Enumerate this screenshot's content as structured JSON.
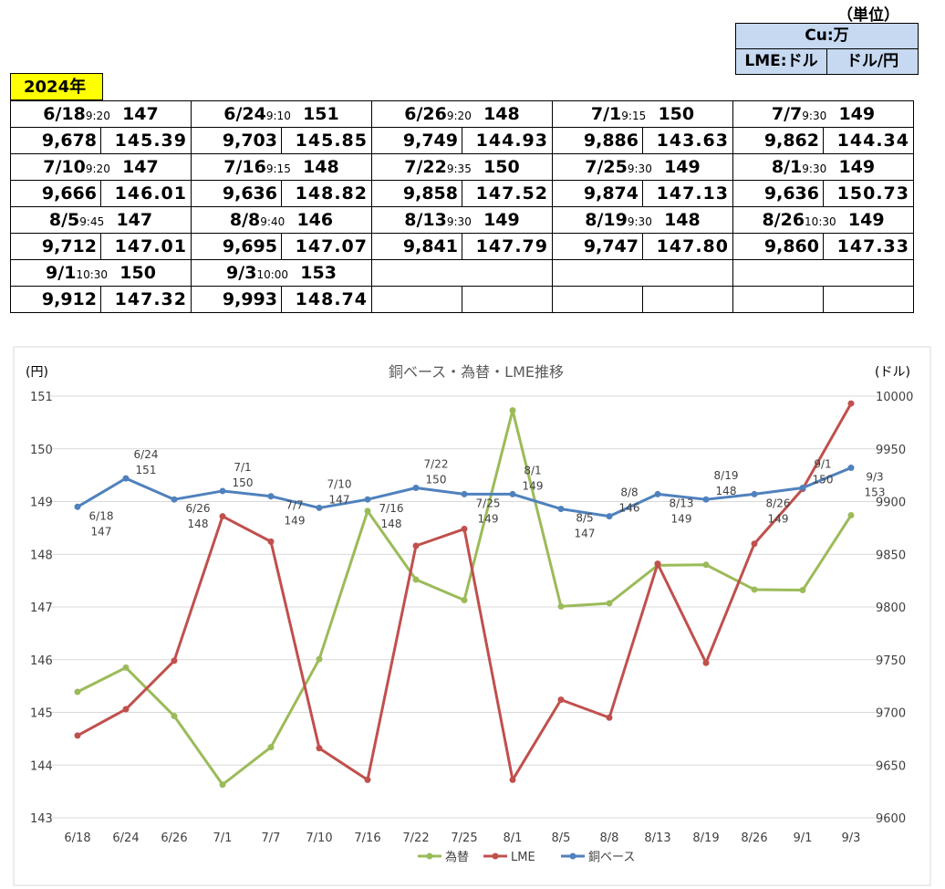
{
  "unit_box": {
    "title": "（単位）",
    "row1": "Cu:万",
    "row2_left": "LME:ドル",
    "row2_right": "ドル/円"
  },
  "year_label": "2024年",
  "table": [
    [
      {
        "date": "6/18",
        "time": "9:20",
        "cu": "147",
        "lme": "9,678",
        "fx": "145.39"
      },
      {
        "date": "6/24",
        "time": "9:10",
        "cu": "151",
        "lme": "9,703",
        "fx": "145.85"
      },
      {
        "date": "6/26",
        "time": "9:20",
        "cu": "148",
        "lme": "9,749",
        "fx": "144.93"
      },
      {
        "date": "7/1",
        "time": "9:15",
        "cu": "150",
        "lme": "9,886",
        "fx": "143.63"
      },
      {
        "date": "7/7",
        "time": "9:30",
        "cu": "149",
        "lme": "9,862",
        "fx": "144.34"
      }
    ],
    [
      {
        "date": "7/10",
        "time": "9:20",
        "cu": "147",
        "lme": "9,666",
        "fx": "146.01"
      },
      {
        "date": "7/16",
        "time": "9:15",
        "cu": "148",
        "lme": "9,636",
        "fx": "148.82"
      },
      {
        "date": "7/22",
        "time": "9:35",
        "cu": "150",
        "lme": "9,858",
        "fx": "147.52"
      },
      {
        "date": "7/25",
        "time": "9:30",
        "cu": "149",
        "lme": "9,874",
        "fx": "147.13"
      },
      {
        "date": "8/1",
        "time": "9:30",
        "cu": "149",
        "lme": "9,636",
        "fx": "150.73"
      }
    ],
    [
      {
        "date": "8/5",
        "time": "9:45",
        "cu": "147",
        "lme": "9,712",
        "fx": "147.01"
      },
      {
        "date": "8/8",
        "time": "9:40",
        "cu": "146",
        "lme": "9,695",
        "fx": "147.07"
      },
      {
        "date": "8/13",
        "time": "9:30",
        "cu": "149",
        "lme": "9,841",
        "fx": "147.79"
      },
      {
        "date": "8/19",
        "time": "9:30",
        "cu": "148",
        "lme": "9,747",
        "fx": "147.80"
      },
      {
        "date": "8/26",
        "time": "10:30",
        "cu": "149",
        "lme": "9,860",
        "fx": "147.33"
      }
    ],
    [
      {
        "date": "9/1",
        "time": "10:30",
        "cu": "150",
        "lme": "9,912",
        "fx": "147.32"
      },
      {
        "date": "9/3",
        "time": "10:00",
        "cu": "153",
        "lme": "9,993",
        "fx": "148.74"
      },
      {
        "date": "",
        "time": "",
        "cu": "",
        "lme": "",
        "fx": ""
      },
      {
        "date": "",
        "time": "",
        "cu": "",
        "lme": "",
        "fx": ""
      },
      {
        "date": "",
        "time": "",
        "cu": "",
        "lme": "",
        "fx": ""
      }
    ]
  ],
  "chart_data": {
    "type": "line",
    "title": "銅ベース・為替・LME推移",
    "y_left_label": "(円)",
    "y_right_label": "(ドル)",
    "categories": [
      "6/18",
      "6/24",
      "6/26",
      "7/1",
      "7/7",
      "7/10",
      "7/16",
      "7/22",
      "7/25",
      "8/1",
      "8/5",
      "8/8",
      "8/13",
      "8/19",
      "8/26",
      "9/1",
      "9/3"
    ],
    "y_left": {
      "min": 143,
      "max": 151,
      "ticks": [
        "143",
        "144",
        "145",
        "146",
        "147",
        "148",
        "149",
        "150",
        "151"
      ]
    },
    "y_right": {
      "min": 9600,
      "max": 10000,
      "ticks": [
        "9600",
        "9650",
        "9700",
        "9750",
        "9800",
        "9850",
        "9900",
        "9950",
        "10000"
      ]
    },
    "grid": true,
    "legend_position": "bottom",
    "series": [
      {
        "name": "為替",
        "axis": "left",
        "color": "#9bbb59",
        "values": [
          145.39,
          145.85,
          144.93,
          143.63,
          144.34,
          146.01,
          148.82,
          147.52,
          147.13,
          150.73,
          147.01,
          147.07,
          147.79,
          147.8,
          147.33,
          147.32,
          148.74
        ]
      },
      {
        "name": "LME",
        "axis": "right",
        "color": "#c0504d",
        "values": [
          9678,
          9703,
          9749,
          9886,
          9862,
          9666,
          9636,
          9858,
          9874,
          9636,
          9712,
          9695,
          9841,
          9747,
          9860,
          9912,
          9993
        ]
      },
      {
        "name": "銅ベース",
        "axis": "right",
        "color": "#4f81bd",
        "values": [
          9895,
          9922,
          9902,
          9910,
          9905,
          9894,
          9902,
          9913,
          9907,
          9907,
          9893,
          9886,
          9907,
          9902,
          9907,
          9913,
          9932
        ],
        "point_labels": [
          {
            "date": "6/18",
            "value": "147"
          },
          {
            "date": "6/24",
            "value": "151"
          },
          {
            "date": "6/26",
            "value": "148"
          },
          {
            "date": "7/1",
            "value": "150"
          },
          {
            "date": "7/7",
            "value": "149"
          },
          {
            "date": "7/10",
            "value": "147"
          },
          {
            "date": "7/16",
            "value": "148"
          },
          {
            "date": "7/22",
            "value": "150"
          },
          {
            "date": "7/25",
            "value": "149"
          },
          {
            "date": "8/1",
            "value": "149"
          },
          {
            "date": "8/5",
            "value": "147"
          },
          {
            "date": "8/8",
            "value": "146"
          },
          {
            "date": "8/13",
            "value": "149"
          },
          {
            "date": "8/19",
            "value": "148"
          },
          {
            "date": "8/26",
            "value": "149"
          },
          {
            "date": "9/1",
            "value": "150"
          },
          {
            "date": "9/3",
            "value": "153"
          }
        ]
      }
    ]
  }
}
